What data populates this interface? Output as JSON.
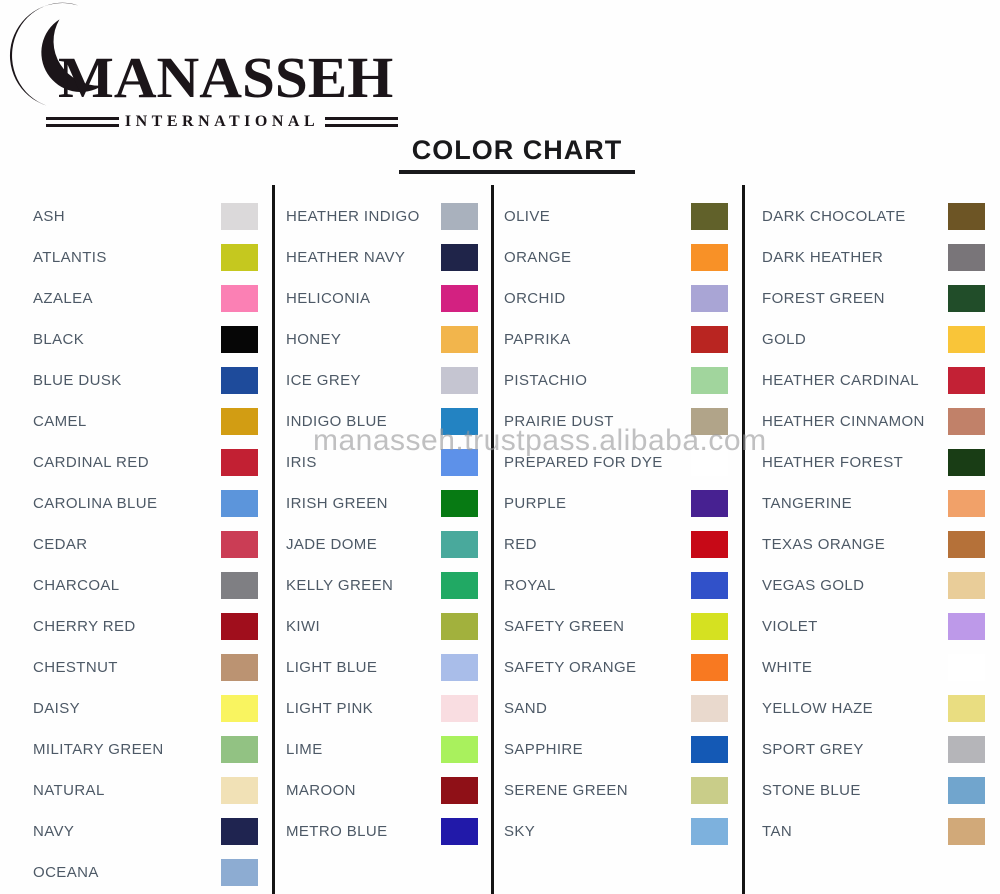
{
  "logo": {
    "name": "MANASSEH",
    "subtitle": "INTERNATIONAL"
  },
  "title": "COLOR CHART",
  "watermark": "manasseh.trustpass.alibaba.com",
  "palette": {
    "label_color": "#4d5966",
    "divider_color": "#141414",
    "logo_color": "#1b1519"
  },
  "columns": [
    {
      "items": [
        {
          "name": "ASH",
          "color": "#dbd9da"
        },
        {
          "name": "ATLANTIS",
          "color": "#c5c81f"
        },
        {
          "name": "AZALEA",
          "color": "#fb80b4"
        },
        {
          "name": "BLACK",
          "color": "#060606"
        },
        {
          "name": "BLUE DUSK",
          "color": "#1e4b9b"
        },
        {
          "name": "CAMEL",
          "color": "#d29d13"
        },
        {
          "name": "CARDINAL RED",
          "color": "#c22033"
        },
        {
          "name": "CAROLINA BLUE",
          "color": "#5c95db"
        },
        {
          "name": "CEDAR",
          "color": "#cb3d55"
        },
        {
          "name": "CHARCOAL",
          "color": "#7f7f83"
        },
        {
          "name": "CHERRY RED",
          "color": "#a00e1c"
        },
        {
          "name": "CHESTNUT",
          "color": "#bb9372"
        },
        {
          "name": "DAISY",
          "color": "#f9f460"
        },
        {
          "name": "MILITARY GREEN",
          "color": "#92c283"
        },
        {
          "name": "NATURAL",
          "color": "#f1e1b6"
        },
        {
          "name": "NAVY",
          "color": "#1f2450"
        },
        {
          "name": "OCEANA",
          "color": "#8dacd2"
        }
      ]
    },
    {
      "items": [
        {
          "name": "HEATHER INDIGO",
          "color": "#a9b1bd"
        },
        {
          "name": "HEATHER NAVY",
          "color": "#1f2449"
        },
        {
          "name": "HELICONIA",
          "color": "#d32181"
        },
        {
          "name": "HONEY",
          "color": "#f2b54c"
        },
        {
          "name": "ICE GREY",
          "color": "#c5c5d1"
        },
        {
          "name": "INDIGO BLUE",
          "color": "#2383c2"
        },
        {
          "name": "IRIS",
          "color": "#5d91e9"
        },
        {
          "name": "IRISH GREEN",
          "color": "#077a13"
        },
        {
          "name": "JADE DOME",
          "color": "#49a99c"
        },
        {
          "name": "KELLY GREEN",
          "color": "#21a964"
        },
        {
          "name": "KIWI",
          "color": "#a2b13d"
        },
        {
          "name": "LIGHT BLUE",
          "color": "#a9bde9"
        },
        {
          "name": "LIGHT PINK",
          "color": "#f9dde1"
        },
        {
          "name": "LIME",
          "color": "#a9f15d"
        },
        {
          "name": "MAROON",
          "color": "#8f1017"
        },
        {
          "name": "METRO BLUE",
          "color": "#2119a9"
        }
      ]
    },
    {
      "items": [
        {
          "name": "OLIVE",
          "color": "#61612a"
        },
        {
          "name": "ORANGE",
          "color": "#f89127"
        },
        {
          "name": "ORCHID",
          "color": "#a9a5d5"
        },
        {
          "name": "PAPRIKA",
          "color": "#b92521"
        },
        {
          "name": "PISTACHIO",
          "color": "#a1d59d"
        },
        {
          "name": "PRAIRIE DUST",
          "color": "#b1a489"
        },
        {
          "name": "PREPARED FOR DYE",
          "color": "#ffffff"
        },
        {
          "name": "PURPLE",
          "color": "#472191"
        },
        {
          "name": "RED",
          "color": "#c70917"
        },
        {
          "name": "ROYAL",
          "color": "#3151c9"
        },
        {
          "name": "SAFETY GREEN",
          "color": "#d5e121"
        },
        {
          "name": "SAFETY ORANGE",
          "color": "#f87921"
        },
        {
          "name": "SAND",
          "color": "#e9d9cd"
        },
        {
          "name": "SAPPHIRE",
          "color": "#1459b5"
        },
        {
          "name": "SERENE GREEN",
          "color": "#c9cd89"
        },
        {
          "name": "SKY",
          "color": "#7db1dd"
        }
      ]
    },
    {
      "items": [
        {
          "name": "DARK CHOCOLATE",
          "color": "#6d5525"
        },
        {
          "name": "DARK HEATHER",
          "color": "#797579"
        },
        {
          "name": "FOREST GREEN",
          "color": "#214d29"
        },
        {
          "name": "GOLD",
          "color": "#f9c539"
        },
        {
          "name": "HEATHER CARDINAL",
          "color": "#c32135"
        },
        {
          "name": "HEATHER CINNAMON",
          "color": "#c18169"
        },
        {
          "name": "HEATHER FOREST",
          "color": "#193d15"
        },
        {
          "name": "TANGERINE",
          "color": "#f1a169"
        },
        {
          "name": "TEXAS ORANGE",
          "color": "#b57139"
        },
        {
          "name": "VEGAS GOLD",
          "color": "#e9cd99"
        },
        {
          "name": "VIOLET",
          "color": "#bd99e9"
        },
        {
          "name": "WHITE",
          "color": "#ffffff"
        },
        {
          "name": "YELLOW HAZE",
          "color": "#e9dd81"
        },
        {
          "name": "SPORT GREY",
          "color": "#b5b5b9"
        },
        {
          "name": "STONE BLUE",
          "color": "#71a5cd"
        },
        {
          "name": "TAN",
          "color": "#d1a979"
        }
      ]
    }
  ]
}
